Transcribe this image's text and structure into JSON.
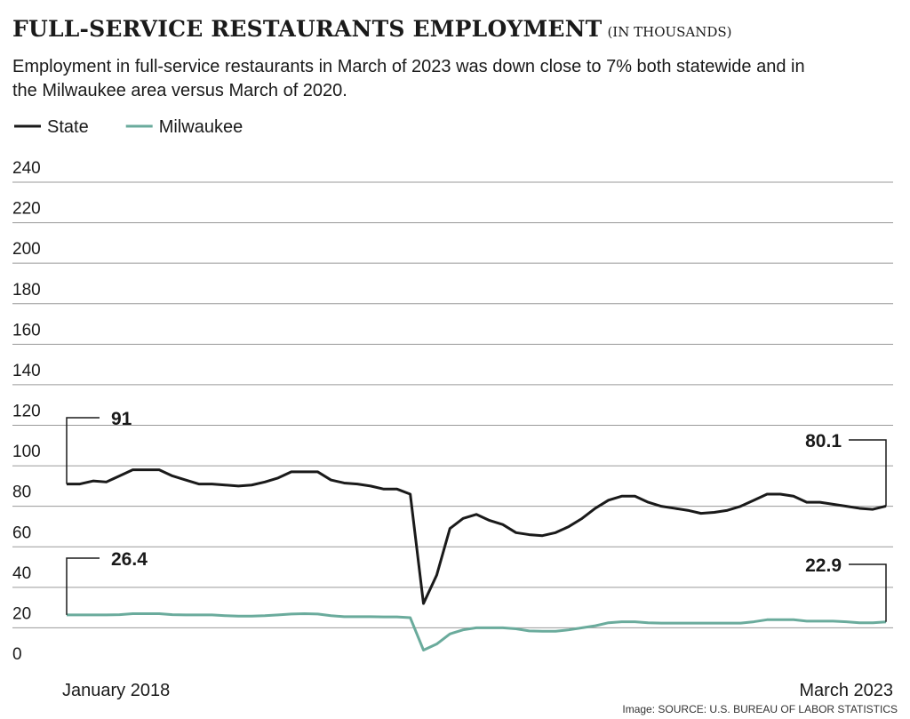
{
  "chart_data": {
    "type": "line",
    "title": "FULL-SERVICE RESTAURANTS EMPLOYMENT",
    "title_unit": "(IN THOUSANDS)",
    "subtitle": "Employment in full-service restaurants in March of 2023 was down close to 7% both statewide and in the Milwaukee area versus March of 2020.",
    "source": "Image: SOURCE: U.S. BUREAU OF LABOR STATISTICS",
    "categories": [
      "January 2018",
      null,
      null,
      null,
      null,
      null,
      null,
      null,
      null,
      null,
      null,
      null,
      null,
      null,
      null,
      null,
      null,
      null,
      null,
      null,
      null,
      null,
      null,
      null,
      null,
      null,
      null,
      null,
      null,
      null,
      null,
      null,
      null,
      null,
      null,
      null,
      null,
      null,
      null,
      null,
      null,
      null,
      null,
      null,
      null,
      null,
      null,
      null,
      null,
      null,
      null,
      null,
      null,
      null,
      null,
      null,
      null,
      null,
      null,
      null,
      null,
      null,
      "March 2023"
    ],
    "series": [
      {
        "name": "State",
        "color": "#1a1a1a",
        "values": [
          91,
          91,
          92.5,
          92,
          95,
          98,
          98,
          98,
          95,
          93,
          91,
          91,
          90.5,
          90,
          90.5,
          92,
          94,
          97,
          97,
          97,
          93,
          91.5,
          91,
          90,
          88.5,
          88.5,
          86,
          32,
          46,
          69,
          74,
          76,
          73,
          71,
          67,
          66,
          65.5,
          67,
          70,
          74,
          79,
          83,
          85,
          85,
          82,
          80,
          79,
          78,
          76.5,
          77,
          78,
          80,
          83,
          86,
          86,
          85,
          82,
          82,
          81,
          80,
          79,
          78.5,
          80.1
        ]
      },
      {
        "name": "Milwaukee",
        "color": "#6aab9c",
        "values": [
          26.4,
          26.4,
          26.4,
          26.4,
          26.5,
          27,
          27,
          27,
          26.5,
          26.4,
          26.4,
          26.4,
          26,
          25.8,
          25.8,
          26,
          26.4,
          26.8,
          27,
          26.8,
          26,
          25.5,
          25.5,
          25.5,
          25.4,
          25.4,
          25,
          9,
          12,
          17,
          19,
          20,
          20,
          20,
          19.5,
          18.5,
          18.3,
          18.3,
          19,
          20,
          21,
          22.5,
          23,
          23,
          22.5,
          22.3,
          22.3,
          22.3,
          22.3,
          22.3,
          22.3,
          22.3,
          23,
          24,
          24,
          24,
          23.3,
          23.3,
          23.3,
          23,
          22.5,
          22.5,
          22.9
        ]
      }
    ],
    "ylim": [
      0,
      240
    ],
    "yticks": [
      0,
      20,
      40,
      60,
      80,
      100,
      120,
      140,
      160,
      180,
      200,
      220,
      240
    ],
    "grid": true
  }
}
